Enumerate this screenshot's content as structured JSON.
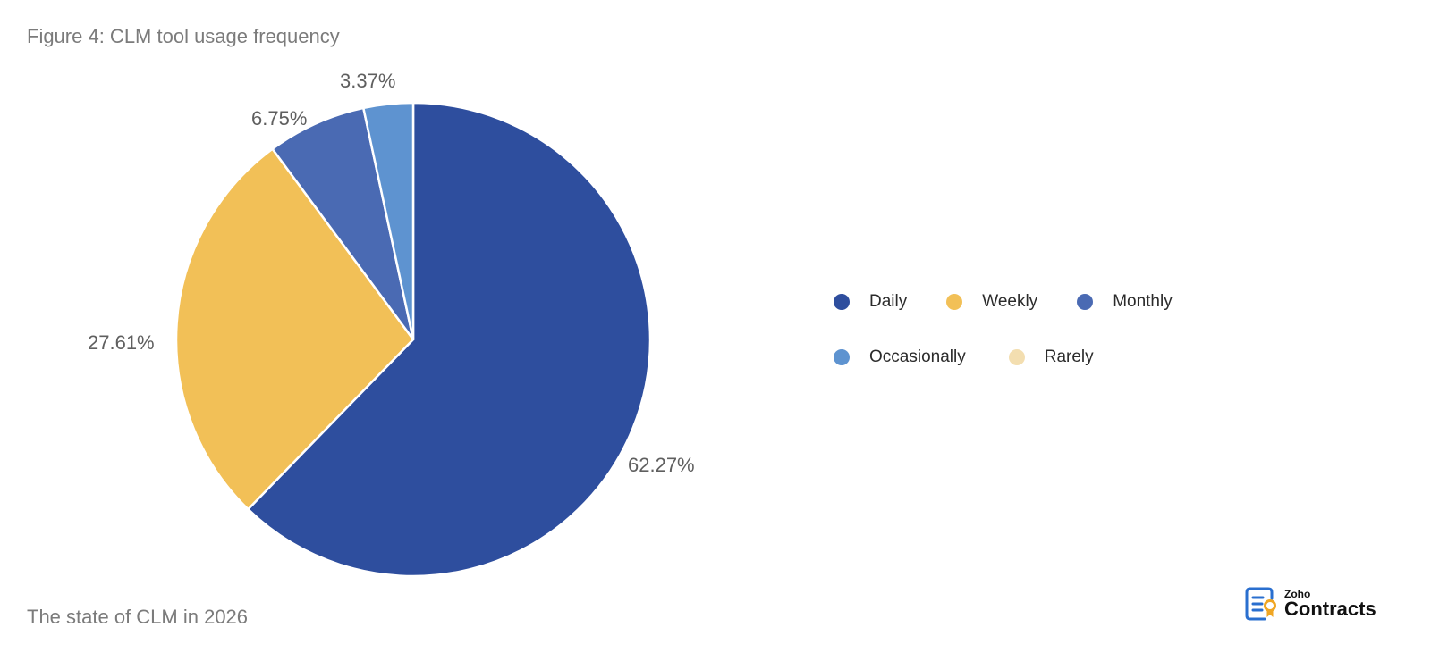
{
  "header": {
    "title": "Figure 4: CLM tool usage frequency"
  },
  "footer": {
    "caption": "The state of CLM in 2026"
  },
  "logo": {
    "brand": "Zoho",
    "product": "Contracts"
  },
  "labels": {
    "daily": "62.27%",
    "weekly": "27.61%",
    "monthly": "6.75%",
    "occasionally": "3.37%"
  },
  "legend": [
    {
      "label": "Daily",
      "color": "#2e4e9e"
    },
    {
      "label": "Weekly",
      "color": "#f2c057"
    },
    {
      "label": "Monthly",
      "color": "#4a6ab3"
    },
    {
      "label": "Occasionally",
      "color": "#5e93d0"
    },
    {
      "label": "Rarely",
      "color": "#f3deb0"
    }
  ],
  "chart_data": {
    "type": "pie",
    "title": "Figure 4: CLM tool usage frequency",
    "categories": [
      "Daily",
      "Weekly",
      "Monthly",
      "Occasionally",
      "Rarely"
    ],
    "values": [
      62.27,
      27.61,
      6.75,
      3.37,
      0
    ],
    "colors": [
      "#2e4e9e",
      "#f2c057",
      "#4a6ab3",
      "#5e93d0",
      "#f3deb0"
    ],
    "legend_position": "right",
    "start_angle": "12 o'clock, clockwise"
  }
}
